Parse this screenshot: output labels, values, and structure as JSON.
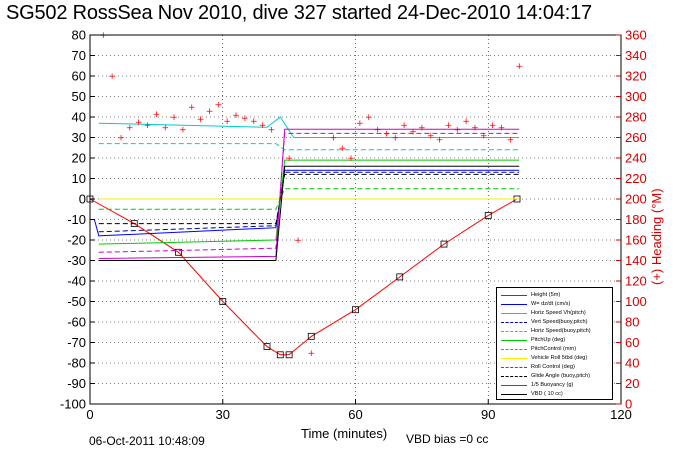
{
  "title": "SG502 RossSea Nov 2010, dive 327 started 24-Dec-2010 14:04:17",
  "footer": {
    "timestamp": "06-Oct-2011 10:48:09",
    "vbd_bias": "VBD bias =0 cc"
  },
  "chart_data": {
    "type": "line",
    "xlabel": "Time (minutes)",
    "ylabel_right": "(+) Heading (°M)",
    "xlim": [
      0,
      120
    ],
    "ylim_left": [
      -100,
      80
    ],
    "ylim_right": [
      0,
      360
    ],
    "x_ticks": [
      0,
      30,
      60,
      90,
      120
    ],
    "y_ticks_left": [
      80,
      70,
      60,
      50,
      40,
      30,
      20,
      10,
      0,
      -10,
      -20,
      -30,
      -40,
      -50,
      -60,
      -70,
      -80,
      -90,
      -100
    ],
    "y_ticks_right": [
      360,
      340,
      320,
      300,
      280,
      260,
      240,
      220,
      200,
      180,
      160,
      140,
      120,
      100,
      80,
      60,
      40,
      20,
      0
    ],
    "grid": true,
    "legend_position": "bottom-right",
    "series": [
      {
        "name": "Height (5m)",
        "color": "#ff0000",
        "style": "solid",
        "x": [
          0,
          10,
          20,
          30,
          40,
          43,
          45,
          50,
          60,
          70,
          80,
          90,
          96.5
        ],
        "y": [
          0,
          -12,
          -26,
          -50,
          -72,
          -76,
          -76,
          -67,
          -54,
          -38,
          -22,
          -8,
          0
        ]
      },
      {
        "name": "W= dz/dt (cm/s)",
        "color": "#0000ff",
        "style": "solid",
        "x": [
          1,
          2,
          42,
          44,
          97
        ],
        "y": [
          -10,
          -18,
          -14,
          14,
          14
        ]
      },
      {
        "name": "Horiz Speed Vh(pitch)",
        "color": "#00cccc",
        "style": "solid",
        "x": [
          2,
          40,
          43,
          46,
          97
        ],
        "y": [
          37,
          35,
          40,
          30,
          30
        ]
      },
      {
        "name": "Vert Speed(buoy,pitch)",
        "color": "#0000aa",
        "style": "dashed",
        "x": [
          2,
          42,
          44,
          97
        ],
        "y": [
          -16,
          -13,
          13,
          13
        ]
      },
      {
        "name": "Horiz Speed(buoy,pitch)",
        "color": "#00cccc",
        "style": "dashed",
        "x": [
          2,
          42,
          44,
          97
        ],
        "y": [
          27,
          27,
          24,
          24
        ]
      },
      {
        "name": "PitchUp (deg)",
        "color": "#00cc00",
        "style": "solid",
        "x": [
          2,
          42,
          44,
          97
        ],
        "y": [
          -22,
          -20,
          19,
          19
        ]
      },
      {
        "name": "PitchControl (mm)",
        "color": "#00cc00",
        "style": "dashed",
        "x": [
          2,
          42,
          44,
          97
        ],
        "y": [
          -5,
          -5,
          5,
          5
        ]
      },
      {
        "name": "Vehicle Roll 5tbd (deg)",
        "color": "#ffee00",
        "style": "solid",
        "x": [
          2,
          42,
          44,
          97
        ],
        "y": [
          0,
          0,
          0,
          0
        ]
      },
      {
        "name": "Roll Control (deg)",
        "color": "#cc00cc",
        "style": "dashed",
        "x": [
          2,
          42,
          44,
          97
        ],
        "y": [
          -26,
          -24,
          32,
          32
        ]
      },
      {
        "name": "Glide Angle (buoy,pitch)",
        "color": "#000000",
        "style": "dashed",
        "x": [
          2,
          42,
          44,
          97
        ],
        "y": [
          -12,
          -12,
          12,
          12
        ]
      },
      {
        "name": "1/5 Buoyancy (g)",
        "color": "#cc00cc",
        "style": "solid",
        "x": [
          2,
          42,
          44,
          97
        ],
        "y": [
          -29,
          -28,
          34,
          34
        ]
      },
      {
        "name": "VBD ( 10 cc)",
        "color": "#000000",
        "style": "solid",
        "x": [
          2,
          42,
          44,
          97
        ],
        "y": [
          -30,
          -30,
          16,
          16
        ]
      }
    ],
    "heading_points": {
      "name": "(+) Heading",
      "color": "#ff0000",
      "x": [
        3,
        5,
        7,
        9,
        11,
        13,
        15,
        17,
        19,
        21,
        23,
        25,
        27,
        29,
        31,
        33,
        35,
        37,
        39,
        41,
        45,
        47,
        50,
        55,
        57,
        59,
        61,
        63,
        65,
        67,
        69,
        71,
        73,
        75,
        77,
        79,
        81,
        83,
        85,
        87,
        89,
        91,
        93,
        95,
        97
      ],
      "y": [
        360,
        320,
        260,
        270,
        275,
        272,
        283,
        270,
        280,
        268,
        290,
        278,
        286,
        292,
        276,
        282,
        279,
        276,
        272,
        268,
        240,
        160,
        50,
        260,
        250,
        240,
        274,
        280,
        268,
        264,
        260,
        272,
        266,
        270,
        262,
        258,
        272,
        268,
        276,
        270,
        262,
        272,
        270,
        258,
        330
      ]
    }
  }
}
